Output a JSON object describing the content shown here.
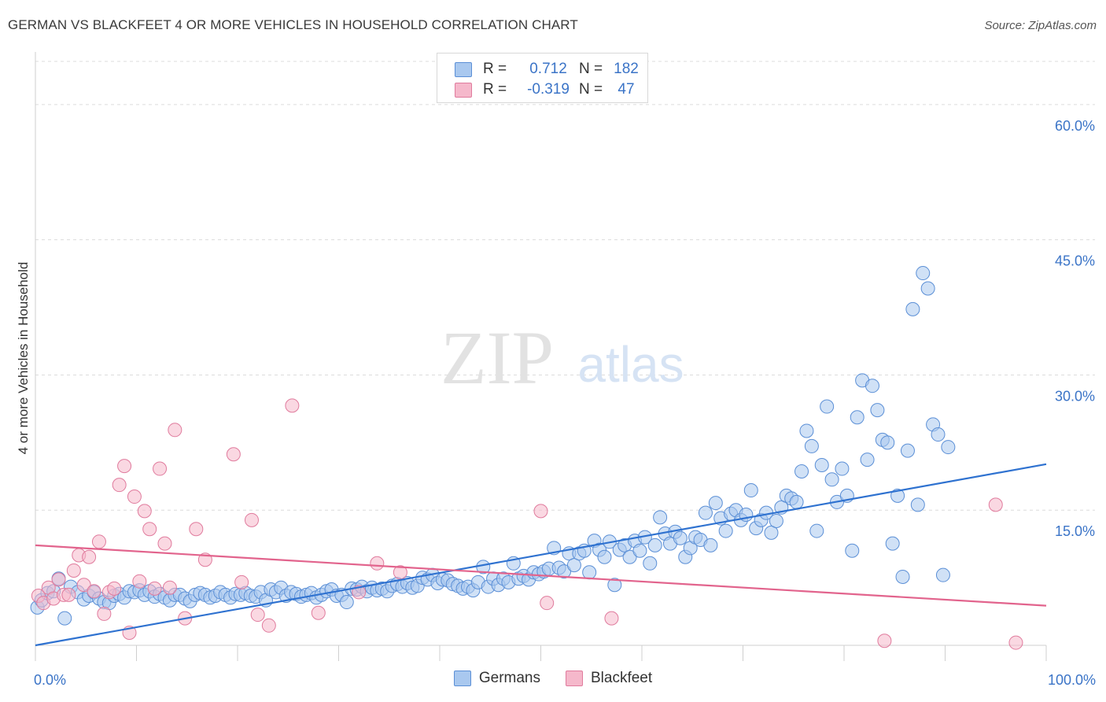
{
  "title": "GERMAN VS BLACKFEET 4 OR MORE VEHICLES IN HOUSEHOLD CORRELATION CHART",
  "source": "Source: ZipAtlas.com",
  "watermark": {
    "zip": "ZIP",
    "atlas": "atlas"
  },
  "legend_top": [
    {
      "r_label": "R =",
      "r_value": "0.712",
      "n_label": "N =",
      "n_value": "182",
      "color": "#a9c8ef",
      "stroke": "#5b8fd6"
    },
    {
      "r_label": "R =",
      "r_value": "-0.319",
      "n_label": "N =",
      "n_value": "47",
      "color": "#f5b8cb",
      "stroke": "#e07b9d"
    }
  ],
  "bottom_legend": [
    {
      "label": "Germans",
      "color": "#a9c8ef",
      "stroke": "#5b8fd6"
    },
    {
      "label": "Blackfeet",
      "color": "#f5b8cb",
      "stroke": "#e07b9d"
    }
  ],
  "chart_data": {
    "type": "scatter",
    "xlabel": "",
    "ylabel": "4 or more Vehicles in Household",
    "xlim": [
      0,
      100
    ],
    "ylim": [
      0,
      60
    ],
    "x_tick_labels": [
      "0.0%",
      "100.0%"
    ],
    "y_ticks": [
      15,
      30,
      45,
      60
    ],
    "y_tick_labels": [
      "15.0%",
      "30.0%",
      "45.0%",
      "60.0%"
    ],
    "grid": true,
    "legend_position": "top-center",
    "series": [
      {
        "name": "Germans",
        "color": "#a9c8ef",
        "stroke": "#5b8fd6",
        "trend": {
          "x": [
            0,
            100
          ],
          "y": [
            0.0,
            20.1
          ],
          "color": "#2f72d0"
        },
        "points": [
          [
            0.2,
            4.2
          ],
          [
            0.6,
            5.0
          ],
          [
            1.2,
            5.8
          ],
          [
            1.8,
            6.0
          ],
          [
            2.3,
            7.4
          ],
          [
            2.9,
            3.0
          ],
          [
            3.5,
            6.5
          ],
          [
            4.2,
            5.9
          ],
          [
            4.8,
            5.1
          ],
          [
            5.3,
            5.5
          ],
          [
            5.8,
            5.9
          ],
          [
            6.3,
            5.2
          ],
          [
            6.8,
            4.8
          ],
          [
            7.3,
            4.7
          ],
          [
            7.8,
            5.5
          ],
          [
            8.3,
            5.7
          ],
          [
            8.8,
            5.3
          ],
          [
            9.3,
            6.0
          ],
          [
            9.8,
            5.9
          ],
          [
            10.3,
            6.1
          ],
          [
            10.8,
            5.6
          ],
          [
            11.3,
            6.0
          ],
          [
            11.8,
            5.4
          ],
          [
            12.3,
            5.7
          ],
          [
            12.8,
            5.3
          ],
          [
            13.3,
            5.0
          ],
          [
            13.8,
            5.6
          ],
          [
            14.3,
            5.6
          ],
          [
            14.8,
            5.2
          ],
          [
            15.3,
            4.9
          ],
          [
            15.8,
            5.6
          ],
          [
            16.3,
            5.8
          ],
          [
            16.8,
            5.6
          ],
          [
            17.3,
            5.3
          ],
          [
            17.8,
            5.5
          ],
          [
            18.3,
            5.9
          ],
          [
            18.8,
            5.6
          ],
          [
            19.3,
            5.3
          ],
          [
            19.8,
            5.7
          ],
          [
            20.3,
            5.6
          ],
          [
            20.8,
            5.8
          ],
          [
            21.3,
            5.5
          ],
          [
            21.8,
            5.4
          ],
          [
            22.3,
            5.9
          ],
          [
            22.8,
            5.0
          ],
          [
            23.3,
            6.2
          ],
          [
            23.8,
            5.9
          ],
          [
            24.3,
            6.4
          ],
          [
            24.8,
            5.5
          ],
          [
            25.3,
            5.9
          ],
          [
            25.8,
            5.7
          ],
          [
            26.3,
            5.4
          ],
          [
            26.8,
            5.6
          ],
          [
            27.3,
            5.8
          ],
          [
            27.8,
            5.3
          ],
          [
            28.3,
            5.6
          ],
          [
            28.8,
            6.0
          ],
          [
            29.3,
            6.2
          ],
          [
            29.8,
            5.5
          ],
          [
            30.3,
            5.6
          ],
          [
            30.8,
            4.8
          ],
          [
            31.3,
            6.3
          ],
          [
            31.8,
            6.2
          ],
          [
            32.3,
            6.5
          ],
          [
            32.8,
            6.0
          ],
          [
            33.3,
            6.4
          ],
          [
            33.8,
            6.1
          ],
          [
            34.3,
            6.3
          ],
          [
            34.8,
            6.0
          ],
          [
            35.3,
            6.6
          ],
          [
            35.8,
            6.8
          ],
          [
            36.3,
            6.5
          ],
          [
            36.8,
            6.9
          ],
          [
            37.3,
            6.4
          ],
          [
            37.8,
            6.6
          ],
          [
            38.3,
            7.5
          ],
          [
            38.8,
            7.3
          ],
          [
            39.3,
            7.8
          ],
          [
            39.8,
            6.9
          ],
          [
            40.3,
            7.3
          ],
          [
            40.8,
            7.2
          ],
          [
            41.3,
            6.8
          ],
          [
            41.8,
            6.6
          ],
          [
            42.3,
            6.3
          ],
          [
            42.8,
            6.5
          ],
          [
            43.3,
            6.1
          ],
          [
            43.8,
            7.0
          ],
          [
            44.3,
            8.7
          ],
          [
            44.8,
            6.5
          ],
          [
            45.3,
            7.4
          ],
          [
            45.8,
            6.7
          ],
          [
            46.3,
            7.4
          ],
          [
            46.8,
            7.0
          ],
          [
            47.3,
            9.1
          ],
          [
            47.8,
            7.4
          ],
          [
            48.3,
            7.7
          ],
          [
            48.8,
            7.3
          ],
          [
            49.3,
            8.1
          ],
          [
            49.8,
            7.9
          ],
          [
            50.3,
            8.2
          ],
          [
            50.8,
            8.5
          ],
          [
            51.3,
            10.8
          ],
          [
            51.8,
            8.6
          ],
          [
            52.3,
            8.2
          ],
          [
            52.8,
            10.2
          ],
          [
            53.3,
            8.9
          ],
          [
            53.8,
            10.2
          ],
          [
            54.3,
            10.5
          ],
          [
            54.8,
            8.1
          ],
          [
            55.3,
            11.6
          ],
          [
            55.8,
            10.6
          ],
          [
            56.3,
            9.8
          ],
          [
            56.8,
            11.5
          ],
          [
            57.3,
            6.7
          ],
          [
            57.8,
            10.6
          ],
          [
            58.3,
            11.1
          ],
          [
            58.8,
            9.8
          ],
          [
            59.3,
            11.6
          ],
          [
            59.8,
            10.5
          ],
          [
            60.3,
            12.0
          ],
          [
            60.8,
            9.1
          ],
          [
            61.3,
            11.1
          ],
          [
            61.8,
            14.2
          ],
          [
            62.3,
            12.4
          ],
          [
            62.8,
            11.3
          ],
          [
            63.3,
            12.6
          ],
          [
            63.8,
            11.9
          ],
          [
            64.3,
            9.8
          ],
          [
            64.8,
            10.8
          ],
          [
            65.3,
            12.0
          ],
          [
            65.8,
            11.7
          ],
          [
            66.3,
            14.7
          ],
          [
            66.8,
            11.1
          ],
          [
            67.3,
            15.8
          ],
          [
            67.8,
            14.1
          ],
          [
            68.3,
            12.7
          ],
          [
            68.8,
            14.6
          ],
          [
            69.3,
            15.0
          ],
          [
            69.8,
            13.9
          ],
          [
            70.3,
            14.5
          ],
          [
            70.8,
            17.2
          ],
          [
            71.3,
            13.0
          ],
          [
            71.8,
            13.9
          ],
          [
            72.3,
            14.7
          ],
          [
            72.8,
            12.5
          ],
          [
            73.3,
            13.8
          ],
          [
            73.8,
            15.3
          ],
          [
            74.3,
            16.6
          ],
          [
            74.8,
            16.3
          ],
          [
            75.3,
            15.9
          ],
          [
            75.8,
            19.3
          ],
          [
            76.3,
            23.8
          ],
          [
            76.8,
            22.1
          ],
          [
            77.3,
            12.7
          ],
          [
            77.8,
            20.0
          ],
          [
            78.3,
            26.5
          ],
          [
            78.8,
            18.4
          ],
          [
            79.3,
            15.9
          ],
          [
            79.8,
            19.6
          ],
          [
            80.3,
            16.6
          ],
          [
            80.8,
            10.5
          ],
          [
            81.3,
            25.3
          ],
          [
            81.8,
            29.4
          ],
          [
            82.3,
            20.6
          ],
          [
            82.8,
            28.8
          ],
          [
            83.3,
            26.1
          ],
          [
            83.8,
            22.8
          ],
          [
            84.3,
            22.5
          ],
          [
            84.8,
            11.3
          ],
          [
            85.3,
            16.6
          ],
          [
            85.8,
            7.6
          ],
          [
            86.3,
            21.6
          ],
          [
            86.8,
            37.3
          ],
          [
            87.3,
            15.6
          ],
          [
            87.8,
            41.3
          ],
          [
            88.3,
            39.6
          ],
          [
            88.8,
            24.5
          ],
          [
            89.3,
            23.4
          ],
          [
            89.8,
            7.8
          ],
          [
            90.3,
            22.0
          ]
        ]
      },
      {
        "name": "Blackfeet",
        "color": "#f5b8cb",
        "stroke": "#e07b9d",
        "trend": {
          "x": [
            0,
            100
          ],
          "y": [
            11.1,
            4.4
          ],
          "color": "#e2648d"
        },
        "points": [
          [
            0.3,
            5.5
          ],
          [
            0.8,
            4.7
          ],
          [
            1.3,
            6.4
          ],
          [
            1.8,
            5.2
          ],
          [
            2.3,
            7.3
          ],
          [
            2.8,
            5.6
          ],
          [
            3.3,
            5.6
          ],
          [
            3.8,
            8.3
          ],
          [
            4.3,
            10.0
          ],
          [
            4.8,
            6.7
          ],
          [
            5.3,
            9.8
          ],
          [
            5.8,
            6.0
          ],
          [
            6.3,
            11.5
          ],
          [
            6.8,
            3.5
          ],
          [
            7.3,
            5.9
          ],
          [
            7.8,
            6.3
          ],
          [
            8.3,
            17.8
          ],
          [
            8.8,
            19.9
          ],
          [
            9.3,
            1.4
          ],
          [
            9.8,
            16.5
          ],
          [
            10.3,
            7.1
          ],
          [
            10.8,
            14.9
          ],
          [
            11.3,
            12.9
          ],
          [
            11.8,
            6.3
          ],
          [
            12.3,
            19.6
          ],
          [
            12.8,
            11.3
          ],
          [
            13.3,
            6.4
          ],
          [
            13.8,
            23.9
          ],
          [
            14.8,
            3.0
          ],
          [
            15.9,
            12.9
          ],
          [
            16.8,
            9.5
          ],
          [
            19.6,
            21.2
          ],
          [
            20.4,
            7.0
          ],
          [
            21.4,
            13.9
          ],
          [
            22.0,
            3.4
          ],
          [
            23.1,
            2.2
          ],
          [
            25.4,
            26.6
          ],
          [
            28.0,
            3.6
          ],
          [
            32.0,
            5.9
          ],
          [
            33.8,
            9.1
          ],
          [
            36.1,
            8.1
          ],
          [
            50.0,
            14.9
          ],
          [
            50.6,
            4.7
          ],
          [
            57.0,
            3.0
          ],
          [
            84.0,
            0.5
          ],
          [
            95.0,
            15.6
          ],
          [
            97.0,
            0.3
          ]
        ]
      }
    ]
  }
}
